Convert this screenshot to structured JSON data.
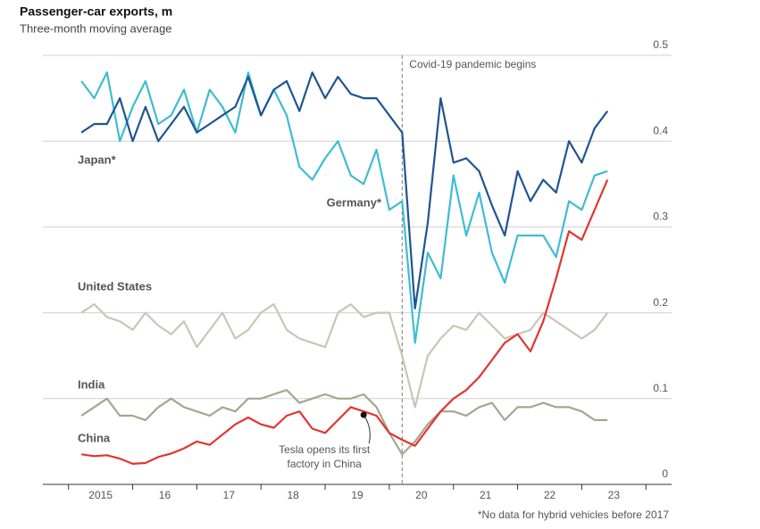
{
  "chart_data": {
    "type": "line",
    "title": "Passenger-car exports, m",
    "subtitle": "Three-month moving average",
    "footnote": "*No data for hybrid vehicles before 2017",
    "x": [
      2015.2,
      2015.4,
      2015.6,
      2015.8,
      2016.0,
      2016.2,
      2016.4,
      2016.6,
      2016.8,
      2017.0,
      2017.2,
      2017.4,
      2017.6,
      2017.8,
      2018.0,
      2018.2,
      2018.4,
      2018.6,
      2018.8,
      2019.0,
      2019.2,
      2019.4,
      2019.6,
      2019.8,
      2020.0,
      2020.2,
      2020.4,
      2020.6,
      2020.8,
      2021.0,
      2021.2,
      2021.4,
      2021.6,
      2021.8,
      2022.0,
      2022.2,
      2022.4,
      2022.6,
      2022.8,
      2023.0,
      2023.2,
      2023.4
    ],
    "series": [
      {
        "name": "Japan*",
        "color": "#1f5591",
        "values": [
          0.41,
          0.42,
          0.42,
          0.45,
          0.4,
          0.44,
          0.4,
          0.42,
          0.44,
          0.41,
          0.42,
          0.43,
          0.44,
          0.475,
          0.43,
          0.46,
          0.47,
          0.435,
          0.48,
          0.45,
          0.475,
          0.455,
          0.45,
          0.45,
          0.43,
          0.41,
          0.205,
          0.305,
          0.45,
          0.375,
          0.38,
          0.365,
          0.325,
          0.29,
          0.365,
          0.33,
          0.355,
          0.34,
          0.4,
          0.375,
          0.415,
          0.435
        ]
      },
      {
        "name": "Germany*",
        "color": "#3ebcd2",
        "values": [
          0.47,
          0.45,
          0.48,
          0.4,
          0.44,
          0.47,
          0.42,
          0.43,
          0.46,
          0.41,
          0.46,
          0.44,
          0.41,
          0.48,
          0.43,
          0.46,
          0.43,
          0.37,
          0.355,
          0.38,
          0.4,
          0.36,
          0.35,
          0.39,
          0.32,
          0.33,
          0.165,
          0.27,
          0.24,
          0.36,
          0.29,
          0.34,
          0.27,
          0.235,
          0.29,
          0.29,
          0.29,
          0.265,
          0.33,
          0.32,
          0.36,
          0.365
        ]
      },
      {
        "name": "United States",
        "color": "#c9c6b3",
        "values": [
          0.2,
          0.21,
          0.195,
          0.19,
          0.18,
          0.2,
          0.185,
          0.175,
          0.19,
          0.16,
          0.18,
          0.2,
          0.17,
          0.18,
          0.2,
          0.21,
          0.18,
          0.17,
          0.165,
          0.16,
          0.2,
          0.21,
          0.195,
          0.2,
          0.2,
          0.15,
          0.09,
          0.15,
          0.17,
          0.185,
          0.18,
          0.2,
          0.185,
          0.17,
          0.175,
          0.18,
          0.2,
          0.19,
          0.18,
          0.17,
          0.18,
          0.2
        ]
      },
      {
        "name": "India",
        "color": "#a8a48f",
        "values": [
          0.08,
          0.09,
          0.1,
          0.08,
          0.08,
          0.075,
          0.09,
          0.1,
          0.09,
          0.085,
          0.08,
          0.09,
          0.085,
          0.1,
          0.1,
          0.105,
          0.11,
          0.095,
          0.1,
          0.105,
          0.1,
          0.1,
          0.105,
          0.09,
          0.06,
          0.035,
          0.05,
          0.07,
          0.085,
          0.085,
          0.08,
          0.09,
          0.095,
          0.075,
          0.09,
          0.09,
          0.095,
          0.09,
          0.09,
          0.085,
          0.075,
          0.075
        ]
      },
      {
        "name": "China",
        "color": "#e3342f",
        "values": [
          0.035,
          0.033,
          0.034,
          0.03,
          0.024,
          0.025,
          0.032,
          0.036,
          0.042,
          0.05,
          0.046,
          0.058,
          0.07,
          0.078,
          0.07,
          0.066,
          0.08,
          0.085,
          0.065,
          0.06,
          0.075,
          0.09,
          0.085,
          0.08,
          0.06,
          0.052,
          0.045,
          0.065,
          0.085,
          0.1,
          0.11,
          0.125,
          0.145,
          0.165,
          0.175,
          0.155,
          0.19,
          0.24,
          0.295,
          0.285,
          0.32,
          0.355
        ]
      }
    ],
    "xlim": [
      2014.6,
      2024.4
    ],
    "xticks": [
      {
        "value": 2015.5,
        "label": "2015"
      },
      {
        "value": 2016.5,
        "label": "16"
      },
      {
        "value": 2017.5,
        "label": "17"
      },
      {
        "value": 2018.5,
        "label": "18"
      },
      {
        "value": 2019.5,
        "label": "19"
      },
      {
        "value": 2020.5,
        "label": "20"
      },
      {
        "value": 2021.5,
        "label": "21"
      },
      {
        "value": 2022.5,
        "label": "22"
      },
      {
        "value": 2023.5,
        "label": "23"
      }
    ],
    "ylim": [
      0,
      0.5
    ],
    "yticks": [
      0,
      0.1,
      0.2,
      0.3,
      0.4,
      0.5
    ],
    "grid": true,
    "annotations": [
      {
        "text": "Covid-19 pandemic begins",
        "x": 2020.2
      },
      {
        "lines": [
          "Tesla opens its first",
          "factory in China"
        ],
        "x": 2019.6,
        "y": 0.081
      }
    ]
  }
}
